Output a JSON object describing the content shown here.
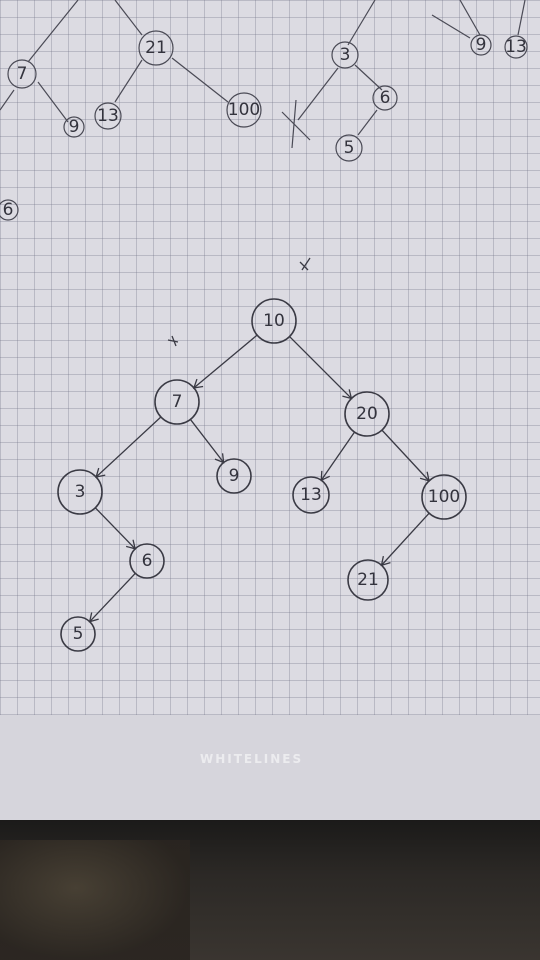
{
  "brand_text": "WHITELINES",
  "main_tree": {
    "nodes": [
      {
        "id": "n10",
        "label": "10"
      },
      {
        "id": "n7",
        "label": "7"
      },
      {
        "id": "n20",
        "label": "20"
      },
      {
        "id": "n3",
        "label": "3"
      },
      {
        "id": "n9",
        "label": "9"
      },
      {
        "id": "n13",
        "label": "13"
      },
      {
        "id": "n100",
        "label": "100"
      },
      {
        "id": "n6",
        "label": "6"
      },
      {
        "id": "n21",
        "label": "21"
      },
      {
        "id": "n5",
        "label": "5"
      }
    ],
    "edges": [
      [
        "n10",
        "n7"
      ],
      [
        "n10",
        "n20"
      ],
      [
        "n7",
        "n3"
      ],
      [
        "n7",
        "n9"
      ],
      [
        "n20",
        "n13"
      ],
      [
        "n20",
        "n100"
      ],
      [
        "n3",
        "n6"
      ],
      [
        "n6",
        "n5"
      ],
      [
        "n100",
        "n21"
      ]
    ]
  },
  "top_tree": {
    "nodes": [
      {
        "id": "t7",
        "label": "7"
      },
      {
        "id": "t9",
        "label": "9"
      },
      {
        "id": "t21",
        "label": "21"
      },
      {
        "id": "t13",
        "label": "13"
      },
      {
        "id": "t100",
        "label": "100"
      },
      {
        "id": "t3",
        "label": "3"
      },
      {
        "id": "t6b",
        "label": "6"
      },
      {
        "id": "t5",
        "label": "5"
      },
      {
        "id": "t9b",
        "label": "9"
      },
      {
        "id": "t13b",
        "label": "13"
      },
      {
        "id": "t6",
        "label": "6"
      }
    ]
  }
}
